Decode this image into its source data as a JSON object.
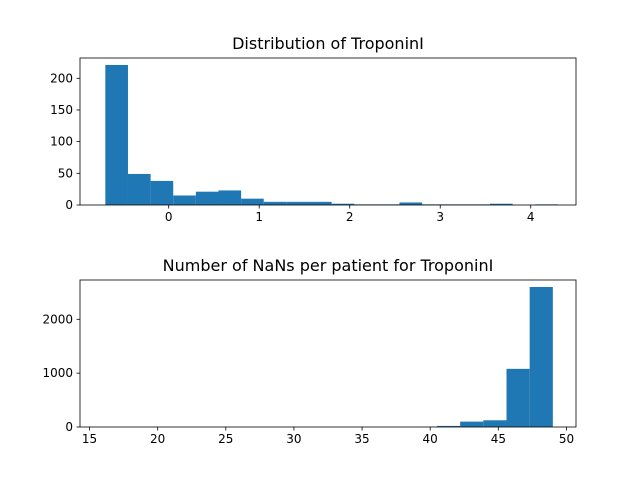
{
  "chart_data": [
    {
      "type": "bar",
      "title": "Distribution of TroponinI",
      "xlabel": "",
      "ylabel": "",
      "xlim": [
        -0.98,
        4.5
      ],
      "ylim": [
        0,
        232
      ],
      "bar_color": "#1f77b4",
      "bin_edges": [
        -0.7,
        -0.45,
        -0.2,
        0.05,
        0.3,
        0.55,
        0.8,
        1.05,
        1.3,
        1.55,
        1.8,
        2.05,
        2.3,
        2.55,
        2.8,
        3.05,
        3.3,
        3.55,
        3.8,
        4.05,
        4.3
      ],
      "values": [
        221,
        49,
        38,
        15,
        21,
        23,
        10,
        5,
        5,
        5,
        2,
        1,
        1,
        4,
        1,
        1,
        1,
        2,
        0,
        1
      ],
      "x_ticks": [
        "0",
        "1",
        "2",
        "3",
        "4"
      ],
      "y_ticks": [
        "0",
        "50",
        "100",
        "150",
        "200"
      ]
    },
    {
      "type": "bar",
      "title": "Number of NaNs per patient for TroponinI",
      "xlabel": "",
      "ylabel": "",
      "xlim": [
        14.3,
        50.7
      ],
      "ylim": [
        0,
        2730
      ],
      "bar_color": "#1f77b4",
      "bin_edges": [
        15,
        16.7,
        18.4,
        20.1,
        21.8,
        23.5,
        25.2,
        26.9,
        28.6,
        30.3,
        32.0,
        33.7,
        35.4,
        37.1,
        38.8,
        40.5,
        42.2,
        43.9,
        45.6,
        47.3,
        49
      ],
      "values": [
        1,
        0,
        0,
        0,
        0,
        0,
        0,
        0,
        0,
        0,
        0,
        0,
        0,
        0,
        2,
        20,
        100,
        125,
        1080,
        2600
      ],
      "x_ticks": [
        "15",
        "20",
        "25",
        "30",
        "35",
        "40",
        "45",
        "50"
      ],
      "y_ticks": [
        "0",
        "1000",
        "2000"
      ]
    }
  ]
}
